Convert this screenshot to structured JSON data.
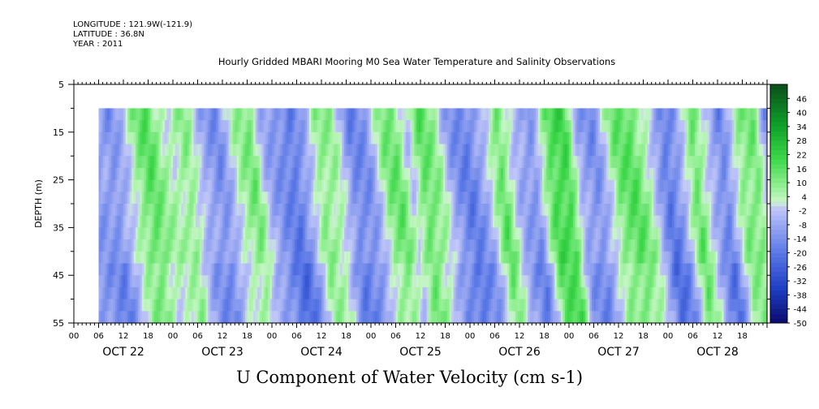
{
  "header": {
    "longitude": "LONGITUDE : 121.9W(-121.9)",
    "latitude": "LATITUDE : 36.8N",
    "year": "YEAR : 2011"
  },
  "title": "Hourly Gridded MBARI Mooring M0 Sea Water Temperature and Salinity Observations",
  "bottom_title": "U Component of Water Velocity (cm s-1)",
  "chart_data": {
    "type": "heatmap",
    "title": "Hourly Gridded MBARI Mooring M0 Sea Water Temperature and Salinity Observations",
    "xlabel": "",
    "ylabel": "DEPTH (m)",
    "variable": "U Component of Water Velocity (cm s-1)",
    "xlim_hours": [
      0,
      168
    ],
    "data_start_hour": 6,
    "ylim": [
      5,
      55
    ],
    "data_depth_range": [
      10,
      55
    ],
    "y_ticks": [
      5,
      15,
      25,
      35,
      45,
      55
    ],
    "x_hour_ticks": [
      "00",
      "06",
      "12",
      "18",
      "00",
      "06",
      "12",
      "18",
      "00",
      "06",
      "12",
      "18",
      "00",
      "06",
      "12",
      "18",
      "00",
      "06",
      "12",
      "18",
      "00",
      "06",
      "12",
      "18",
      "00",
      "06",
      "12",
      "18"
    ],
    "x_day_labels": [
      "OCT 22",
      "OCT 23",
      "OCT 24",
      "OCT 25",
      "OCT 26",
      "OCT 27",
      "OCT 28"
    ],
    "colorbar_labels": [
      "46",
      "40",
      "34",
      "28",
      "22",
      "16",
      "10",
      "4",
      "-2",
      "-8",
      "-14",
      "-20",
      "-26",
      "-32",
      "-38",
      "-44",
      "-50"
    ],
    "colorbar_range": [
      -50,
      52
    ],
    "colormap": [
      {
        "v": -50,
        "c": "#0a0a6e"
      },
      {
        "v": -35,
        "c": "#1f3fc4"
      },
      {
        "v": -20,
        "c": "#5a78e6"
      },
      {
        "v": -8,
        "c": "#9aa8f2"
      },
      {
        "v": -1,
        "c": "#c0c6f8"
      },
      {
        "v": 2,
        "c": "#c8f6c8"
      },
      {
        "v": 8,
        "c": "#96f096"
      },
      {
        "v": 20,
        "c": "#3ed84a"
      },
      {
        "v": 34,
        "c": "#0fa32a"
      },
      {
        "v": 52,
        "c": "#0a4f1a"
      }
    ],
    "u_velocity_profile": [
      {
        "hour": 6,
        "u": -10
      },
      {
        "hour": 8,
        "u": -14
      },
      {
        "hour": 11,
        "u": -4
      },
      {
        "hour": 14,
        "u": 10
      },
      {
        "hour": 17,
        "u": 16
      },
      {
        "hour": 20,
        "u": 6
      },
      {
        "hour": 23,
        "u": 4
      },
      {
        "hour": 26,
        "u": 10
      },
      {
        "hour": 30,
        "u": -8
      },
      {
        "hour": 34,
        "u": -14
      },
      {
        "hour": 38,
        "u": 4
      },
      {
        "hour": 42,
        "u": 12
      },
      {
        "hour": 45,
        "u": -6
      },
      {
        "hour": 48,
        "u": -12
      },
      {
        "hour": 52,
        "u": -20
      },
      {
        "hour": 55,
        "u": -8
      },
      {
        "hour": 58,
        "u": 10
      },
      {
        "hour": 62,
        "u": 6
      },
      {
        "hour": 66,
        "u": -16
      },
      {
        "hour": 70,
        "u": -12
      },
      {
        "hour": 74,
        "u": 10
      },
      {
        "hour": 77,
        "u": 14
      },
      {
        "hour": 80,
        "u": -2
      },
      {
        "hour": 83,
        "u": 16
      },
      {
        "hour": 87,
        "u": 6
      },
      {
        "hour": 90,
        "u": -10
      },
      {
        "hour": 94,
        "u": -18
      },
      {
        "hour": 98,
        "u": -8
      },
      {
        "hour": 102,
        "u": 16
      },
      {
        "hour": 106,
        "u": -6
      },
      {
        "hour": 110,
        "u": -14
      },
      {
        "hour": 114,
        "u": 18
      },
      {
        "hour": 118,
        "u": 20
      },
      {
        "hour": 121,
        "u": -8
      },
      {
        "hour": 125,
        "u": -14
      },
      {
        "hour": 130,
        "u": 12
      },
      {
        "hour": 134,
        "u": 16
      },
      {
        "hour": 138,
        "u": 4
      },
      {
        "hour": 142,
        "u": -20
      },
      {
        "hour": 145,
        "u": -12
      },
      {
        "hour": 149,
        "u": 16
      },
      {
        "hour": 153,
        "u": -6
      },
      {
        "hour": 156,
        "u": -18
      },
      {
        "hour": 160,
        "u": 10
      },
      {
        "hour": 164,
        "u": 12
      },
      {
        "hour": 167,
        "u": -14
      }
    ]
  }
}
